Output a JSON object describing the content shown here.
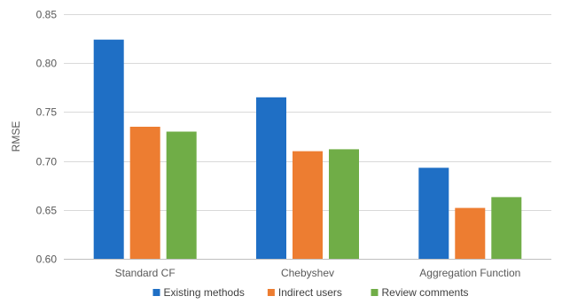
{
  "chart_data": {
    "type": "bar",
    "ylabel": "RMSE",
    "ylim": [
      0.6,
      0.85
    ],
    "yticks": [
      "0.60",
      "0.65",
      "0.70",
      "0.75",
      "0.80",
      "0.85"
    ],
    "ytick_values": [
      0.6,
      0.65,
      0.7,
      0.75,
      0.8,
      0.85
    ],
    "grid": true,
    "legend_position": "bottom",
    "categories": [
      "Standard CF",
      "Chebyshev",
      "Aggregation Function"
    ],
    "series": [
      {
        "name": "Existing methods",
        "color": "#1f6fc5",
        "values": [
          0.824,
          0.765,
          0.693
        ]
      },
      {
        "name": "Indirect users",
        "color": "#ed7d31",
        "values": [
          0.735,
          0.71,
          0.652
        ]
      },
      {
        "name": "Review comments",
        "color": "#70ad47",
        "values": [
          0.73,
          0.712,
          0.663
        ]
      }
    ]
  }
}
